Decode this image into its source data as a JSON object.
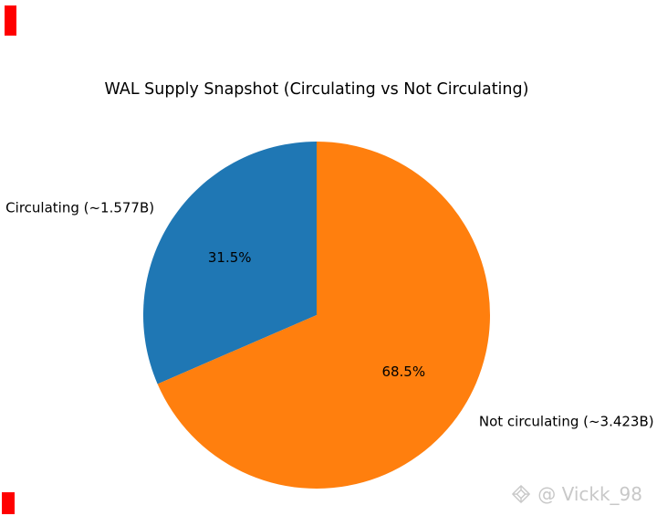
{
  "chart_data": {
    "type": "pie",
    "title": "WAL Supply Snapshot (Circulating vs Not Circulating)",
    "start_angle": 90,
    "direction": "counterclockwise",
    "slices": [
      {
        "label": "Circulating (~1.577B)",
        "value": 31.5,
        "pct_label": "31.5%",
        "color": "#1f77b4"
      },
      {
        "label": "Not circulating (~3.423B)",
        "value": 68.5,
        "pct_label": "68.5%",
        "color": "#ff7f0e"
      }
    ],
    "text_color": "#000000",
    "legend": "none",
    "grid": "off"
  },
  "watermark": {
    "text": "@ Vickk_98",
    "icon": "gem-icon",
    "color": "#c8c8c8"
  },
  "decorations": {
    "corner_marker_color": "#ff0000"
  }
}
